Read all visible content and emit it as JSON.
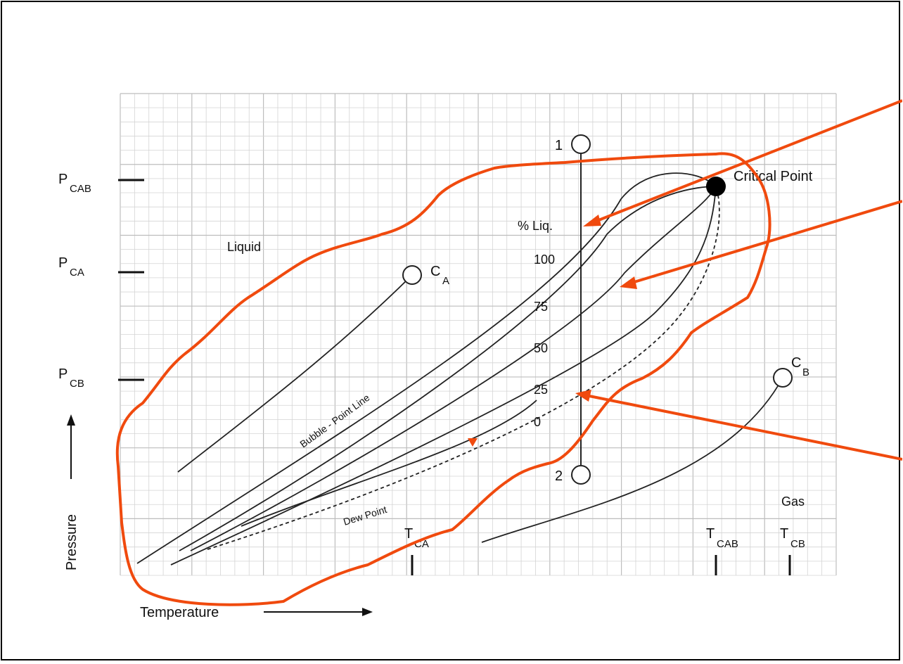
{
  "diagram": {
    "axes": {
      "x_label": "Temperature",
      "y_label": "Pressure"
    },
    "y_ticks": [
      {
        "main": "P",
        "sub": "CAB"
      },
      {
        "main": "P",
        "sub": "CA"
      },
      {
        "main": "P",
        "sub": "CB"
      }
    ],
    "x_ticks": [
      {
        "main": "T",
        "sub": "CA"
      },
      {
        "main": "T",
        "sub": "CAB"
      },
      {
        "main": "T",
        "sub": "CB"
      }
    ],
    "regions": {
      "liquid": "Liquid",
      "gas": "Gas"
    },
    "critical_point": "Critical Point",
    "points": {
      "ca_main": "C",
      "ca_sub": "A",
      "cb_main": "C",
      "cb_sub": "B",
      "p1": "1",
      "p2": "2"
    },
    "curve_labels": {
      "bubble": "Bubble - Point Line",
      "dew": "Dew Point"
    },
    "liquid_percent": {
      "header": "% Liq.",
      "values": [
        "100",
        "75",
        "50",
        "25",
        "0"
      ]
    },
    "colors": {
      "annotation": "#f04a0e",
      "line": "#222222",
      "grid_fine": "#d4d4d4",
      "grid_major": "#bdbdbd"
    }
  }
}
